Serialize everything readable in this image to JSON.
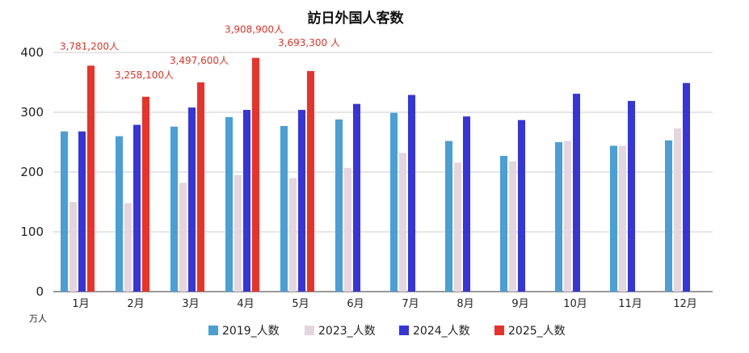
{
  "chart_data": {
    "type": "bar",
    "title": "訪日外国人客数",
    "unit_label": "万人",
    "categories": [
      "1月",
      "2月",
      "3月",
      "4月",
      "5月",
      "6月",
      "7月",
      "8月",
      "9月",
      "10月",
      "11月",
      "12月"
    ],
    "ylim": [
      0,
      400
    ],
    "yticks": [
      "0",
      "100",
      "200",
      "300",
      "400"
    ],
    "grid": true,
    "legend_position": "bottom",
    "series": [
      {
        "name": "2019_人数",
        "color": "#4a9fd4",
        "values": [
          268,
          260,
          276,
          292,
          277,
          288,
          299,
          252,
          227,
          250,
          244,
          253
        ]
      },
      {
        "name": "2023_人数",
        "color": "#e5d5df",
        "values": [
          150,
          148,
          182,
          195,
          190,
          207,
          232,
          216,
          218,
          252,
          244,
          273
        ]
      },
      {
        "name": "2024_人数",
        "color": "#3535d8",
        "values": [
          268,
          279,
          308,
          304,
          304,
          314,
          329,
          293,
          287,
          331,
          319,
          349
        ]
      },
      {
        "name": "2025_人数",
        "color": "#e8332a",
        "values": [
          378,
          326,
          350,
          391,
          369,
          null,
          null,
          null,
          null,
          null,
          null,
          null
        ]
      }
    ],
    "data_labels": [
      {
        "series": 3,
        "index": 0,
        "text": "3,781,200人"
      },
      {
        "series": 3,
        "index": 1,
        "text": "3,258,100人"
      },
      {
        "series": 3,
        "index": 2,
        "text": "3,497,600人"
      },
      {
        "series": 3,
        "index": 3,
        "text": "3,908,900人"
      },
      {
        "series": 3,
        "index": 4,
        "text": "3,693,300 人"
      }
    ]
  }
}
